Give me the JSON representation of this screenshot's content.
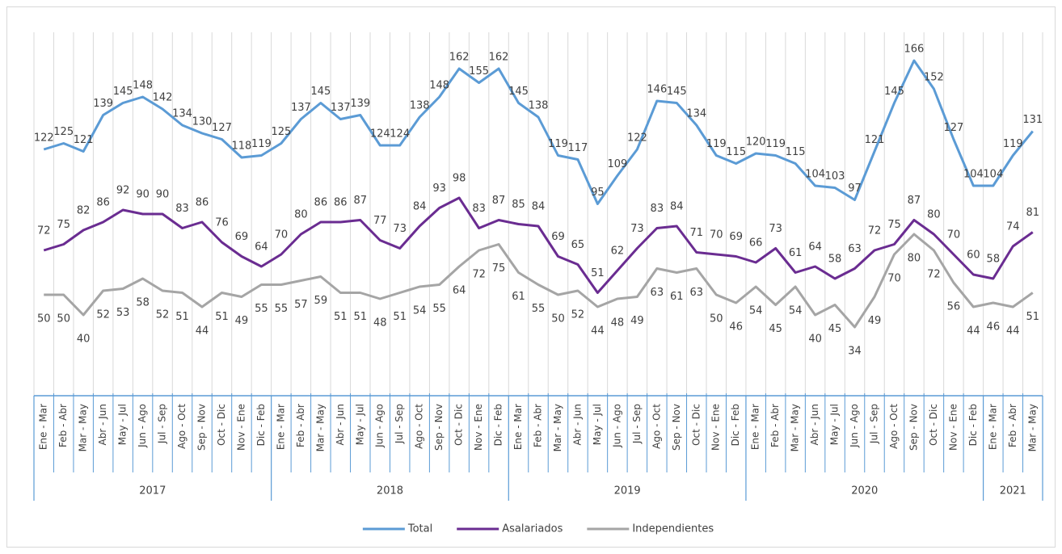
{
  "chart_data": {
    "type": "line",
    "category_groups": [
      {
        "name": "2017",
        "categories": [
          "Ene - Mar",
          "Feb - Abr",
          "Mar - May",
          "Abr - Jun",
          "May - Jul",
          "Jun - Ago",
          "Jul - Sep",
          "Ago - Oct",
          "Sep - Nov",
          "Oct - Dic",
          "Nov - Ene",
          "Dic - Feb"
        ]
      },
      {
        "name": "2018",
        "categories": [
          "Ene - Mar",
          "Feb - Abr",
          "Mar - May",
          "Abr - Jun",
          "May - Jul",
          "Jun - Ago",
          "Jul - Sep",
          "Ago - Oct",
          "Sep - Nov",
          "Oct - Dic",
          "Nov - Ene",
          "Dic - Feb"
        ]
      },
      {
        "name": "2019",
        "categories": [
          "Ene - Mar",
          "Feb - Abr",
          "Mar - May",
          "Abr - Jun",
          "May - Jul",
          "Jun - Ago",
          "Jul - Sep",
          "Ago - Oct",
          "Sep - Nov",
          "Oct - Dic",
          "Nov - Ene",
          "Dic - Feb"
        ]
      },
      {
        "name": "2020",
        "categories": [
          "Ene - Mar",
          "Feb - Abr",
          "Mar - May",
          "Abr - Jun",
          "May - Jul",
          "Jun - Ago",
          "Jul - Sep",
          "Ago - Oct",
          "Sep - Nov",
          "Oct - Dic",
          "Nov - Ene",
          "Dic - Feb"
        ]
      },
      {
        "name": "2021",
        "categories": [
          "Ene - Mar",
          "Feb - Abr",
          "Mar - May"
        ]
      }
    ],
    "series": [
      {
        "name": "Total",
        "color": "#5b9bd5",
        "label_position": "above",
        "values": [
          122,
          125,
          121,
          139,
          145,
          148,
          142,
          134,
          130,
          127,
          118,
          119,
          125,
          137,
          145,
          137,
          139,
          124,
          124,
          138,
          148,
          162,
          155,
          162,
          145,
          138,
          119,
          117,
          95,
          109,
          122,
          146,
          145,
          134,
          119,
          115,
          120,
          119,
          115,
          104,
          103,
          97,
          121,
          145,
          166,
          152,
          127,
          104,
          104,
          119,
          131
        ]
      },
      {
        "name": "Asalariados",
        "color": "#6a2c91",
        "label_position": "above",
        "values": [
          72,
          75,
          82,
          86,
          92,
          90,
          90,
          83,
          86,
          76,
          69,
          64,
          70,
          80,
          86,
          86,
          87,
          77,
          73,
          84,
          93,
          98,
          83,
          87,
          85,
          84,
          69,
          65,
          51,
          62,
          73,
          83,
          84,
          71,
          70,
          69,
          66,
          73,
          61,
          64,
          58,
          63,
          72,
          75,
          87,
          80,
          70,
          60,
          58,
          74,
          81
        ]
      },
      {
        "name": "Independientes",
        "color": "#a5a5a5",
        "label_position": "below",
        "values": [
          50,
          50,
          40,
          52,
          53,
          58,
          52,
          51,
          44,
          51,
          49,
          55,
          55,
          57,
          59,
          51,
          51,
          48,
          51,
          54,
          55,
          64,
          72,
          75,
          61,
          55,
          50,
          52,
          44,
          48,
          49,
          63,
          61,
          63,
          50,
          46,
          54,
          45,
          54,
          40,
          45,
          34,
          49,
          70,
          80,
          72,
          56,
          44,
          46,
          44,
          51
        ]
      }
    ],
    "ylim": [
      0,
      180
    ],
    "legend": "bottom"
  }
}
